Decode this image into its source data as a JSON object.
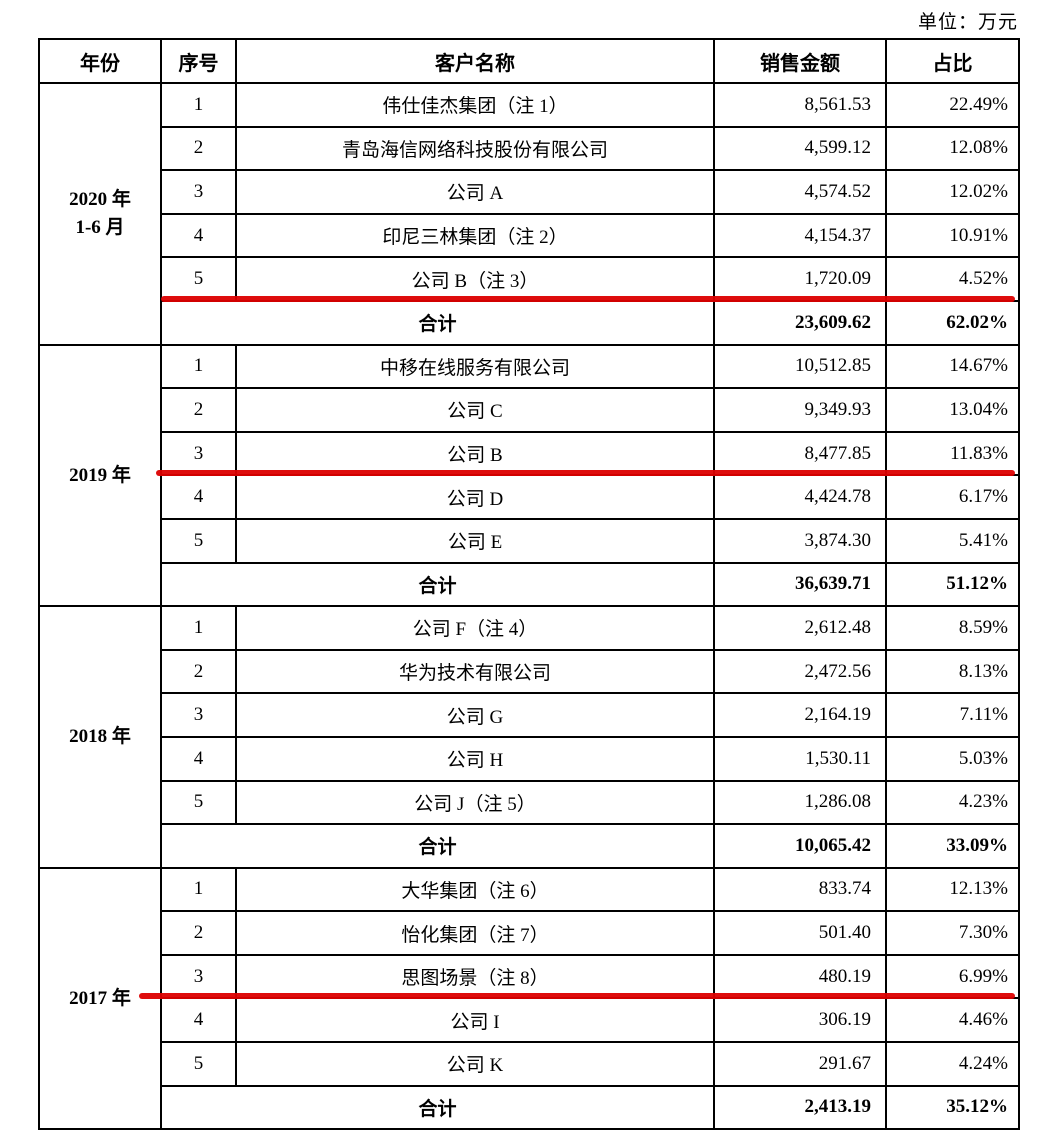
{
  "unit_label": "单位：万元",
  "table": {
    "headers": {
      "year": "年份",
      "index": "序号",
      "customer": "客户名称",
      "amount": "销售金额",
      "share": "占比"
    },
    "total_label": "合计",
    "groups": [
      {
        "year_lines": [
          "2020 年",
          "1-6 月"
        ],
        "rows": [
          {
            "index": "1",
            "customer": "伟仕佳杰集团（注 1）",
            "amount": "8,561.53",
            "share": "22.49%"
          },
          {
            "index": "2",
            "customer": "青岛海信网络科技股份有限公司",
            "amount": "4,599.12",
            "share": "12.08%"
          },
          {
            "index": "3",
            "customer": "公司 A",
            "amount": "4,574.52",
            "share": "12.02%"
          },
          {
            "index": "4",
            "customer": "印尼三林集团（注 2）",
            "amount": "4,154.37",
            "share": "10.91%"
          },
          {
            "index": "5",
            "customer": "公司 B（注 3）",
            "amount": "1,720.09",
            "share": "4.52%",
            "underline": true
          }
        ],
        "total": {
          "amount": "23,609.62",
          "share": "62.02%"
        }
      },
      {
        "year_lines": [
          "2019 年"
        ],
        "rows": [
          {
            "index": "1",
            "customer": "中移在线服务有限公司",
            "amount": "10,512.85",
            "share": "14.67%"
          },
          {
            "index": "2",
            "customer": "公司 C",
            "amount": "9,349.93",
            "share": "13.04%"
          },
          {
            "index": "3",
            "customer": "公司 B",
            "amount": "8,477.85",
            "share": "11.83%",
            "underline": true
          },
          {
            "index": "4",
            "customer": "公司 D",
            "amount": "4,424.78",
            "share": "6.17%"
          },
          {
            "index": "5",
            "customer": "公司 E",
            "amount": "3,874.30",
            "share": "5.41%"
          }
        ],
        "total": {
          "amount": "36,639.71",
          "share": "51.12%"
        }
      },
      {
        "year_lines": [
          "2018 年"
        ],
        "rows": [
          {
            "index": "1",
            "customer": "公司 F（注 4）",
            "amount": "2,612.48",
            "share": "8.59%"
          },
          {
            "index": "2",
            "customer": "华为技术有限公司",
            "amount": "2,472.56",
            "share": "8.13%"
          },
          {
            "index": "3",
            "customer": "公司 G",
            "amount": "2,164.19",
            "share": "7.11%"
          },
          {
            "index": "4",
            "customer": "公司 H",
            "amount": "1,530.11",
            "share": "5.03%"
          },
          {
            "index": "5",
            "customer": "公司 J（注 5）",
            "amount": "1,286.08",
            "share": "4.23%"
          }
        ],
        "total": {
          "amount": "10,065.42",
          "share": "33.09%"
        }
      },
      {
        "year_lines": [
          "2017 年"
        ],
        "rows": [
          {
            "index": "1",
            "customer": "大华集团（注 6）",
            "amount": "833.74",
            "share": "12.13%"
          },
          {
            "index": "2",
            "customer": "怡化集团（注 7）",
            "amount": "501.40",
            "share": "7.30%"
          },
          {
            "index": "3",
            "customer": "思图场景（注 8）",
            "amount": "480.19",
            "share": "6.99%",
            "underline": true
          },
          {
            "index": "4",
            "customer": "公司 I",
            "amount": "306.19",
            "share": "4.46%"
          },
          {
            "index": "5",
            "customer": "公司 K",
            "amount": "291.67",
            "share": "4.24%"
          }
        ],
        "total": {
          "amount": "2,413.19",
          "share": "35.12%"
        }
      }
    ]
  },
  "marker": {
    "color": "#dc0000",
    "lines": [
      {
        "left_extend": 0
      },
      {
        "left_extend": 5
      },
      {
        "left_extend": 22
      }
    ]
  }
}
